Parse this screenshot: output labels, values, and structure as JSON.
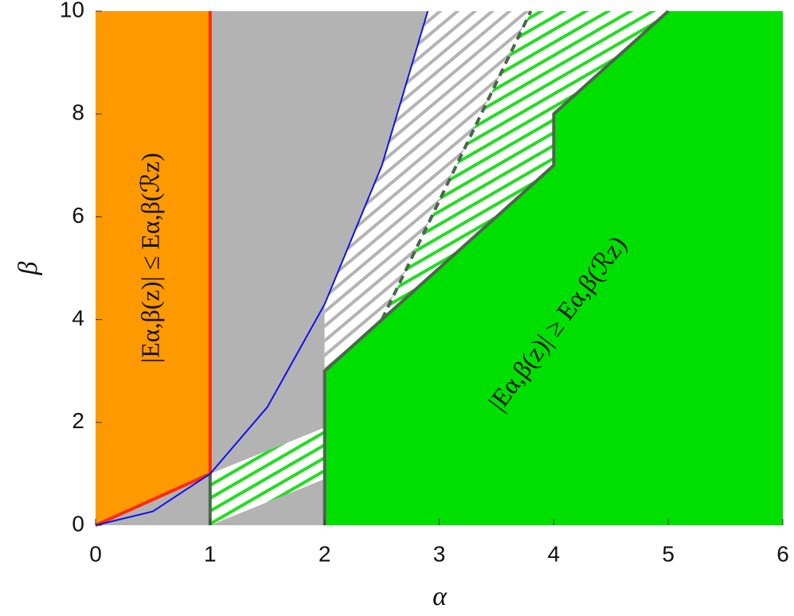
{
  "chart_data": {
    "type": "region",
    "xlabel": "α",
    "ylabel": "β",
    "xlim": [
      0,
      6
    ],
    "ylim": [
      0,
      10
    ],
    "xticks": [
      0,
      1,
      2,
      3,
      4,
      5,
      6
    ],
    "yticks": [
      0,
      2,
      4,
      6,
      8,
      10
    ],
    "regions": [
      {
        "color": "#b3b3b3",
        "x": [
          0,
          2,
          2,
          2.5,
          2.9,
          0
        ],
        "y": [
          0,
          0,
          4.3,
          7,
          10,
          10
        ]
      },
      {
        "color": "#ff9900",
        "x": [
          0,
          1,
          1,
          0
        ],
        "y": [
          0,
          1,
          10,
          10
        ]
      },
      {
        "color": "#ffffff",
        "hatch": "#b3b3b3",
        "x": [
          2,
          2.5,
          3.8,
          2.9,
          2.5,
          2
        ],
        "y": [
          3,
          4,
          10,
          10,
          7,
          4.3
        ]
      },
      {
        "color": "#ffffff",
        "hatch": "#22dd22",
        "x": [
          2.5,
          3.8,
          5,
          4,
          4
        ],
        "y": [
          4,
          10,
          10,
          8,
          7
        ]
      },
      {
        "color": "#ffffff",
        "hatch": "#22dd22",
        "x": [
          1,
          2,
          2,
          1
        ],
        "y": [
          0,
          0.9,
          1.9,
          1
        ]
      },
      {
        "color": "#00e000",
        "x": [
          2,
          2,
          4,
          4,
          5,
          6,
          6
        ],
        "y": [
          0,
          3,
          7,
          8,
          10,
          10,
          0
        ]
      }
    ],
    "lines": [
      {
        "color": "#ff2a00",
        "x": [
          0,
          1,
          1
        ],
        "y": [
          0,
          1,
          10
        ]
      },
      {
        "color": "#4a684a",
        "x": [
          1,
          1
        ],
        "y": [
          0,
          1
        ]
      },
      {
        "color": "#4a684a",
        "x": [
          2,
          2,
          4,
          4,
          5
        ],
        "y": [
          0,
          3,
          7,
          8,
          10
        ]
      },
      {
        "color": "#4a684a",
        "style": "dashed",
        "x": [
          2.5,
          3.8
        ],
        "y": [
          4,
          10
        ]
      },
      {
        "color": "#1010ee",
        "x": [
          0,
          0.5,
          1,
          1.5,
          2,
          2.5,
          2.9
        ],
        "y": [
          0,
          0.27,
          1,
          2.3,
          4.3,
          7,
          10
        ]
      }
    ],
    "annotations": [
      {
        "text": "|Eα,β(z)| ≤ Eα,β(ℛz)",
        "x": 0.5,
        "y": 5.2,
        "angle": -90
      },
      {
        "text": "|Eα,β(z)| ≥ Eα,β(ℛz)",
        "x": 4.05,
        "y": 3.9,
        "angle": -53
      }
    ]
  }
}
